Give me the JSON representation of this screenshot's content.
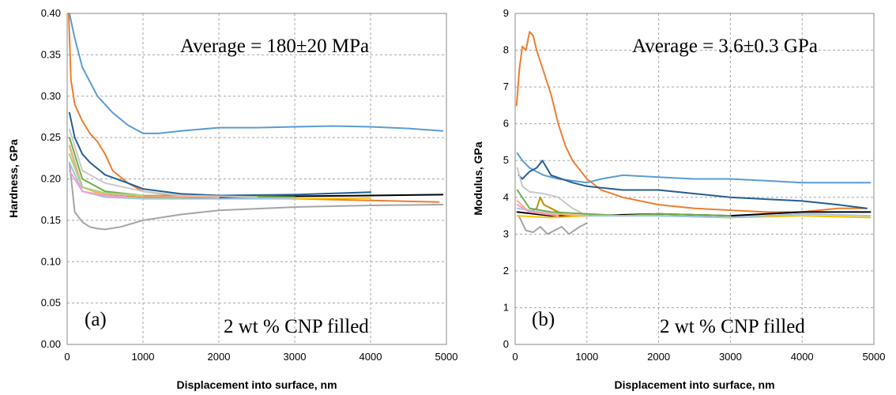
{
  "chart_data": [
    {
      "type": "line",
      "panel_label": "(a)",
      "annotation": "Average = 180±20 MPa",
      "note": "2 wt % CNP filled",
      "xlabel": "Displacement into surface, nm",
      "ylabel": "Hardness, GPa",
      "xlim": [
        0,
        5000
      ],
      "ylim": [
        0,
        0.4
      ],
      "xticks": [
        "0",
        "1000",
        "2000",
        "3000",
        "4000",
        "5000"
      ],
      "yticks": [
        "0.00",
        "0.05",
        "0.10",
        "0.15",
        "0.20",
        "0.25",
        "0.30",
        "0.35",
        "0.40"
      ],
      "grid": true,
      "series": [
        {
          "color": "#5b9bd5",
          "x": [
            30,
            100,
            200,
            400,
            600,
            800,
            1000,
            1200,
            1500,
            2000,
            2500,
            3000,
            3500,
            4000,
            4500,
            4950
          ],
          "y": [
            0.4,
            0.37,
            0.335,
            0.3,
            0.28,
            0.265,
            0.255,
            0.255,
            0.258,
            0.262,
            0.262,
            0.263,
            0.264,
            0.263,
            0.261,
            0.258
          ]
        },
        {
          "color": "#ed7d31",
          "x": [
            20,
            50,
            100,
            200,
            300,
            400,
            500,
            600,
            800,
            1000,
            1500,
            2000,
            3000,
            4000,
            4900
          ],
          "y": [
            0.4,
            0.32,
            0.29,
            0.27,
            0.255,
            0.245,
            0.23,
            0.21,
            0.195,
            0.185,
            0.179,
            0.177,
            0.176,
            0.174,
            0.172
          ]
        },
        {
          "color": "#255e91",
          "x": [
            30,
            100,
            200,
            300,
            500,
            800,
            1000,
            1500,
            2000,
            3000,
            4000
          ],
          "y": [
            0.28,
            0.25,
            0.23,
            0.22,
            0.205,
            0.195,
            0.188,
            0.182,
            0.18,
            0.181,
            0.184
          ]
        },
        {
          "color": "#a5a5a5",
          "x": [
            30,
            100,
            200,
            300,
            400,
            500,
            700,
            1000,
            1500,
            2000,
            3000,
            4000,
            4950
          ],
          "y": [
            0.22,
            0.16,
            0.148,
            0.142,
            0.14,
            0.139,
            0.142,
            0.15,
            0.157,
            0.162,
            0.166,
            0.168,
            0.169
          ]
        },
        {
          "color": "#000000",
          "x": [
            30,
            200,
            500,
            1000,
            2000,
            3000,
            4000,
            4950
          ],
          "y": [
            0.24,
            0.19,
            0.182,
            0.178,
            0.178,
            0.179,
            0.18,
            0.181
          ]
        },
        {
          "color": "#70ad47",
          "x": [
            30,
            200,
            500,
            1000,
            2000,
            3000
          ],
          "y": [
            0.25,
            0.2,
            0.185,
            0.18,
            0.179,
            0.178
          ]
        },
        {
          "color": "#ffc000",
          "x": [
            30,
            200,
            500,
            1000,
            2000,
            3000,
            4000
          ],
          "y": [
            0.23,
            0.19,
            0.18,
            0.177,
            0.176,
            0.176,
            0.177
          ]
        },
        {
          "color": "#c9c9c9",
          "x": [
            30,
            200,
            500,
            1000,
            1500,
            2500
          ],
          "y": [
            0.26,
            0.21,
            0.195,
            0.185,
            0.18,
            0.178
          ]
        },
        {
          "color": "#f4b183",
          "x": [
            30,
            200,
            500,
            1000,
            2000
          ],
          "y": [
            0.24,
            0.19,
            0.182,
            0.179,
            0.178
          ]
        },
        {
          "color": "#9dc3e6",
          "x": [
            30,
            200,
            500,
            1000,
            2000,
            3000
          ],
          "y": [
            0.22,
            0.185,
            0.178,
            0.176,
            0.176,
            0.177
          ]
        },
        {
          "color": "#ff99cc",
          "x": [
            30,
            200,
            500,
            800
          ],
          "y": [
            0.21,
            0.185,
            0.18,
            0.178
          ]
        },
        {
          "color": "#a9d18e",
          "x": [
            30,
            200,
            500,
            1000
          ],
          "y": [
            0.23,
            0.19,
            0.183,
            0.18
          ]
        }
      ]
    },
    {
      "type": "line",
      "panel_label": "(b)",
      "annotation": "Average = 3.6±0.3 GPa",
      "note": "2 wt % CNP filled",
      "xlabel": "Displacement into surface, nm",
      "ylabel": "Modulus, GPa",
      "xlim": [
        0,
        5000
      ],
      "ylim": [
        0,
        9
      ],
      "xticks": [
        "0",
        "1000",
        "2000",
        "3000",
        "4000",
        "5000"
      ],
      "yticks": [
        "0",
        "1",
        "2",
        "3",
        "4",
        "5",
        "6",
        "7",
        "8",
        "9"
      ],
      "grid": true,
      "series": [
        {
          "color": "#ed7d31",
          "x": [
            20,
            60,
            100,
            150,
            200,
            250,
            300,
            400,
            500,
            600,
            700,
            800,
            1000,
            1200,
            1500,
            2000,
            2500,
            3000,
            3500,
            4000,
            4500,
            4900
          ],
          "y": [
            6.5,
            7.5,
            8.1,
            8.0,
            8.5,
            8.4,
            8.0,
            7.4,
            6.8,
            6.0,
            5.4,
            5.0,
            4.5,
            4.2,
            4.0,
            3.8,
            3.7,
            3.65,
            3.6,
            3.6,
            3.7,
            3.7
          ]
        },
        {
          "color": "#5b9bd5",
          "x": [
            30,
            100,
            200,
            300,
            400,
            600,
            800,
            1000,
            1200,
            1500,
            2000,
            2500,
            3000,
            3500,
            4000,
            4500,
            4950
          ],
          "y": [
            5.2,
            5.0,
            4.8,
            4.7,
            4.6,
            4.5,
            4.45,
            4.4,
            4.5,
            4.6,
            4.55,
            4.5,
            4.5,
            4.45,
            4.4,
            4.4,
            4.4
          ]
        },
        {
          "color": "#255e91",
          "x": [
            50,
            100,
            200,
            300,
            380,
            500,
            800,
            1000,
            1500,
            2000,
            2500,
            3000,
            3500,
            4000,
            4500,
            4900
          ],
          "y": [
            4.6,
            4.5,
            4.7,
            4.8,
            5.0,
            4.6,
            4.4,
            4.3,
            4.2,
            4.2,
            4.1,
            4.0,
            3.95,
            3.9,
            3.8,
            3.7
          ]
        },
        {
          "color": "#a5a5a5",
          "x": [
            50,
            150,
            250,
            350,
            450,
            550,
            650,
            750,
            900,
            1000
          ],
          "y": [
            3.5,
            3.1,
            3.05,
            3.2,
            3.0,
            3.1,
            3.2,
            3.0,
            3.2,
            3.3
          ]
        },
        {
          "color": "#c9c9c9",
          "x": [
            30,
            100,
            200,
            400,
            600,
            800,
            1000
          ],
          "y": [
            4.8,
            4.3,
            4.15,
            4.1,
            4.0,
            3.7,
            3.5
          ]
        },
        {
          "color": "#bf9000",
          "x": [
            200,
            300,
            350,
            400,
            500,
            600,
            700
          ],
          "y": [
            3.6,
            3.7,
            4.0,
            3.8,
            3.7,
            3.6,
            3.5
          ]
        },
        {
          "color": "#000000",
          "x": [
            30,
            500,
            1000,
            2000,
            3000,
            4000,
            4500,
            4950
          ],
          "y": [
            3.6,
            3.5,
            3.5,
            3.55,
            3.5,
            3.6,
            3.6,
            3.6
          ]
        },
        {
          "color": "#70ad47",
          "x": [
            30,
            200,
            500,
            1000,
            1500,
            2000,
            3000
          ],
          "y": [
            4.2,
            3.7,
            3.6,
            3.55,
            3.5,
            3.55,
            3.5
          ]
        },
        {
          "color": "#ffc000",
          "x": [
            30,
            500,
            1000,
            2000,
            3000,
            4000,
            4950
          ],
          "y": [
            3.5,
            3.45,
            3.5,
            3.5,
            3.45,
            3.5,
            3.45
          ]
        },
        {
          "color": "#9dc3e6",
          "x": [
            30,
            500,
            1000,
            2000,
            3000,
            4000,
            4950
          ],
          "y": [
            3.7,
            3.55,
            3.5,
            3.5,
            3.45,
            3.55,
            3.5
          ]
        },
        {
          "color": "#f4b183",
          "x": [
            30,
            200,
            500,
            1000
          ],
          "y": [
            3.9,
            3.6,
            3.55,
            3.5
          ]
        },
        {
          "color": "#ff99cc",
          "x": [
            30,
            200,
            400,
            600
          ],
          "y": [
            3.8,
            3.6,
            3.55,
            3.5
          ]
        }
      ]
    }
  ]
}
